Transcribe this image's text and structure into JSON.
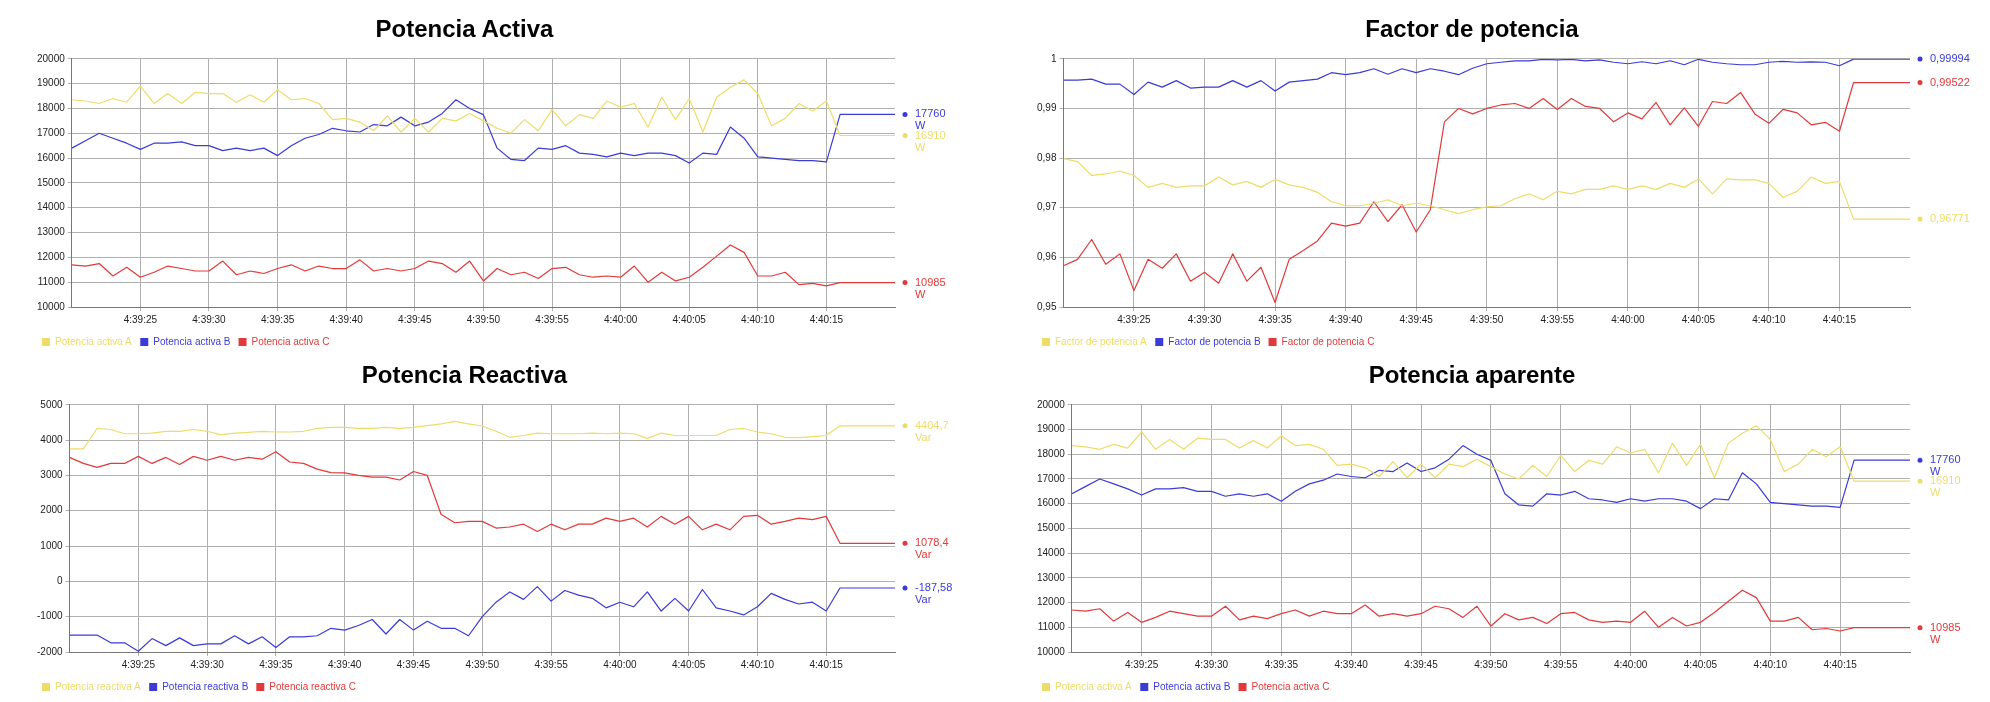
{
  "chart_data": [
    {
      "type": "line",
      "title": "Potencia Activa",
      "grid": true,
      "legend": "bottom",
      "x": [
        4.655556,
        4.655833,
        4.656111,
        4.656389,
        4.656667,
        4.656944,
        4.657222,
        4.6575,
        4.657778,
        4.658056,
        4.658333,
        4.658611,
        4.658889,
        4.659167,
        4.659444,
        4.659722,
        4.66,
        4.660278,
        4.660556,
        4.660833,
        4.661111,
        4.661389,
        4.661667,
        4.661944,
        4.662222,
        4.6625,
        4.662778,
        4.663056,
        4.663333,
        4.663611,
        4.663889,
        4.664167,
        4.664444,
        4.664722,
        4.665,
        4.665278,
        4.665556,
        4.665833,
        4.666111,
        4.666389,
        4.666667,
        4.666944,
        4.667222,
        4.6675,
        4.667778,
        4.668056,
        4.668333,
        4.668611,
        4.668889,
        4.669167,
        4.669444,
        4.669722,
        4.67,
        4.670278,
        4.670556,
        4.670833,
        4.671111,
        4.672222
      ],
      "xlim": [
        4.655556,
        4.672222
      ],
      "xticks": [
        {
          "value": 4.656944,
          "label": "4:39:25"
        },
        {
          "value": 4.658333,
          "label": "4:39:30"
        },
        {
          "value": 4.659722,
          "label": "4:39:35"
        },
        {
          "value": 4.661111,
          "label": "4:39:40"
        },
        {
          "value": 4.6625,
          "label": "4:39:45"
        },
        {
          "value": 4.663889,
          "label": "4:39:50"
        },
        {
          "value": 4.665278,
          "label": "4:39:55"
        },
        {
          "value": 4.666667,
          "label": "4:40:00"
        },
        {
          "value": 4.668056,
          "label": "4:40:05"
        },
        {
          "value": 4.669444,
          "label": "4:40:10"
        },
        {
          "value": 4.670833,
          "label": "4:40:15"
        }
      ],
      "ylim": [
        10000,
        20000
      ],
      "yticks": [
        10000,
        11000,
        12000,
        13000,
        14000,
        15000,
        16000,
        17000,
        18000,
        19000,
        20000
      ],
      "series": [
        {
          "name": "Potencia activa A",
          "color": "#eedc6a",
          "values": [
            18350,
            18300,
            18200,
            18400,
            18250,
            18900,
            18200,
            18600,
            18200,
            18650,
            18600,
            18600,
            18250,
            18550,
            18250,
            18750,
            18350,
            18400,
            18200,
            17550,
            17600,
            17450,
            17100,
            17700,
            17050,
            17600,
            17050,
            17600,
            17500,
            17800,
            17500,
            17200,
            17000,
            17550,
            17100,
            17950,
            17300,
            17750,
            17600,
            18300,
            18050,
            18200,
            17250,
            18450,
            17550,
            18400,
            17050,
            18450,
            18850,
            19150,
            18600,
            17300,
            17600,
            18200,
            17900,
            18300,
            16910,
            16910
          ],
          "value_labels": [
            null,
            null,
            null,
            null,
            null,
            null,
            null,
            null,
            null,
            null,
            null,
            null,
            null,
            null,
            null,
            null,
            null,
            null,
            null,
            null,
            null,
            null,
            null,
            null,
            null,
            null,
            null,
            null,
            null,
            null,
            null,
            null,
            null,
            null,
            null,
            null,
            null,
            null,
            null,
            null,
            null,
            null,
            null,
            null,
            null,
            null,
            null,
            null,
            null,
            null,
            null,
            null,
            null,
            null,
            null,
            null,
            null,
            "16910 W"
          ]
        },
        {
          "name": "Potencia activa B",
          "color": "#3b3bd6",
          "values": [
            16400,
            16700,
            17000,
            16800,
            16600,
            16350,
            16600,
            16600,
            16650,
            16500,
            16500,
            16300,
            16400,
            16300,
            16400,
            16100,
            16500,
            16800,
            16950,
            17200,
            17100,
            17050,
            17350,
            17300,
            17650,
            17300,
            17450,
            17800,
            18350,
            18000,
            17750,
            16400,
            15950,
            15900,
            16400,
            16350,
            16500,
            16200,
            16150,
            16050,
            16200,
            16100,
            16200,
            16200,
            16100,
            15800,
            16200,
            16150,
            17250,
            16800,
            16050,
            16000,
            15950,
            15900,
            15900,
            15850,
            17760,
            17760
          ],
          "value_labels": [
            null,
            null,
            null,
            null,
            null,
            null,
            null,
            null,
            null,
            null,
            null,
            null,
            null,
            null,
            null,
            null,
            null,
            null,
            null,
            null,
            null,
            null,
            null,
            null,
            null,
            null,
            null,
            null,
            null,
            null,
            null,
            null,
            null,
            null,
            null,
            null,
            null,
            null,
            null,
            null,
            null,
            null,
            null,
            null,
            null,
            null,
            null,
            null,
            null,
            null,
            null,
            null,
            null,
            null,
            null,
            null,
            null,
            "17760 W"
          ]
        },
        {
          "name": "Potencia activa C",
          "color": "#e03a3a",
          "values": [
            11700,
            11650,
            11750,
            11250,
            11600,
            11200,
            11400,
            11650,
            11550,
            11450,
            11450,
            11850,
            11300,
            11450,
            11350,
            11550,
            11700,
            11450,
            11650,
            11550,
            11550,
            11900,
            11450,
            11550,
            11450,
            11550,
            11850,
            11750,
            11400,
            11850,
            11050,
            11550,
            11300,
            11400,
            11150,
            11550,
            11600,
            11300,
            11200,
            11250,
            11200,
            11650,
            11000,
            11400,
            11050,
            11200,
            11600,
            12050,
            12500,
            12200,
            11250,
            11250,
            11400,
            10900,
            10950,
            10850,
            10985,
            10985
          ],
          "value_labels": [
            null,
            null,
            null,
            null,
            null,
            null,
            null,
            null,
            null,
            null,
            null,
            null,
            null,
            null,
            null,
            null,
            null,
            null,
            null,
            null,
            null,
            null,
            null,
            null,
            null,
            null,
            null,
            null,
            null,
            null,
            null,
            null,
            null,
            null,
            null,
            null,
            null,
            null,
            null,
            null,
            null,
            null,
            null,
            null,
            null,
            null,
            null,
            null,
            null,
            null,
            null,
            null,
            null,
            null,
            null,
            null,
            null,
            "10985 W"
          ]
        }
      ]
    },
    {
      "type": "line",
      "title": "Factor de potencia",
      "grid": true,
      "legend": "bottom",
      "x": [
        4.655556,
        4.655833,
        4.656111,
        4.656389,
        4.656667,
        4.656944,
        4.657222,
        4.6575,
        4.657778,
        4.658056,
        4.658333,
        4.658611,
        4.658889,
        4.659167,
        4.659444,
        4.659722,
        4.66,
        4.660278,
        4.660556,
        4.660833,
        4.661111,
        4.661389,
        4.661667,
        4.661944,
        4.662222,
        4.6625,
        4.662778,
        4.663056,
        4.663333,
        4.663611,
        4.663889,
        4.664167,
        4.664444,
        4.664722,
        4.665,
        4.665278,
        4.665556,
        4.665833,
        4.666111,
        4.666389,
        4.666667,
        4.666944,
        4.667222,
        4.6675,
        4.667778,
        4.668056,
        4.668333,
        4.668611,
        4.668889,
        4.669167,
        4.669444,
        4.669722,
        4.67,
        4.670278,
        4.670556,
        4.670833,
        4.671111,
        4.672222
      ],
      "xlim": [
        4.655556,
        4.672222
      ],
      "xticks": [
        {
          "value": 4.656944,
          "label": "4:39:25"
        },
        {
          "value": 4.658333,
          "label": "4:39:30"
        },
        {
          "value": 4.659722,
          "label": "4:39:35"
        },
        {
          "value": 4.661111,
          "label": "4:39:40"
        },
        {
          "value": 4.6625,
          "label": "4:39:45"
        },
        {
          "value": 4.663889,
          "label": "4:39:50"
        },
        {
          "value": 4.665278,
          "label": "4:39:55"
        },
        {
          "value": 4.666667,
          "label": "4:40:00"
        },
        {
          "value": 4.668056,
          "label": "4:40:05"
        },
        {
          "value": 4.669444,
          "label": "4:40:10"
        },
        {
          "value": 4.670833,
          "label": "4:40:15"
        }
      ],
      "ylim": [
        0.95,
        1
      ],
      "yticks": [
        {
          "value": 0.95,
          "label": "0,95"
        },
        {
          "value": 0.96,
          "label": "0,96"
        },
        {
          "value": 0.97,
          "label": "0,97"
        },
        {
          "value": 0.98,
          "label": "0,98"
        },
        {
          "value": 0.99,
          "label": "0,99"
        },
        1
      ],
      "series": [
        {
          "name": "Factor de potencia A",
          "color": "#eedc6a",
          "values": [
            0.9799,
            0.9793,
            0.9765,
            0.9768,
            0.9774,
            0.9765,
            0.9741,
            0.9749,
            0.9741,
            0.9744,
            0.9744,
            0.9762,
            0.9746,
            0.9753,
            0.9741,
            0.9757,
            0.9746,
            0.9741,
            0.9731,
            0.9712,
            0.9704,
            0.9704,
            0.9709,
            0.9716,
            0.9704,
            0.9709,
            0.9704,
            0.9696,
            0.9688,
            0.9696,
            0.9702,
            0.9704,
            0.9718,
            0.9728,
            0.9716,
            0.9733,
            0.9728,
            0.9737,
            0.9737,
            0.9744,
            0.9737,
            0.9744,
            0.9737,
            0.9749,
            0.9741,
            0.9758,
            0.9728,
            0.9758,
            0.9756,
            0.9756,
            0.9749,
            0.9721,
            0.9733,
            0.9762,
            0.9749,
            0.9753,
            0.96771,
            0.96771
          ],
          "value_labels": [
            null,
            null,
            null,
            null,
            null,
            null,
            null,
            null,
            null,
            null,
            null,
            null,
            null,
            null,
            null,
            null,
            null,
            null,
            null,
            null,
            null,
            null,
            null,
            null,
            null,
            null,
            null,
            null,
            null,
            null,
            null,
            null,
            null,
            null,
            null,
            null,
            null,
            null,
            null,
            null,
            null,
            null,
            null,
            null,
            null,
            null,
            null,
            null,
            null,
            null,
            null,
            null,
            null,
            null,
            null,
            null,
            null,
            "0,96771"
          ]
        },
        {
          "name": "Factor de potencia B",
          "color": "#3b3bd6",
          "values": [
            0.9957,
            0.9957,
            0.9959,
            0.9949,
            0.9949,
            0.9928,
            0.9953,
            0.9943,
            0.9956,
            0.9941,
            0.9943,
            0.9943,
            0.9956,
            0.9943,
            0.9956,
            0.9935,
            0.9953,
            0.9956,
            0.9959,
            0.9972,
            0.9968,
            0.9972,
            0.998,
            0.9969,
            0.998,
            0.9972,
            0.998,
            0.9975,
            0.9968,
            0.9981,
            0.999,
            0.9993,
            0.9996,
            0.9996,
            0.9999,
            0.9998,
            0.9999,
            0.9996,
            0.9998,
            0.9993,
            0.999,
            0.9994,
            0.999,
            0.9996,
            0.9988,
            0.9999,
            0.9993,
            0.999,
            0.9988,
            0.9988,
            0.9993,
            0.9995,
            0.9993,
            0.9994,
            0.9993,
            0.9986,
            0.99994,
            0.99994
          ],
          "value_labels": [
            null,
            null,
            null,
            null,
            null,
            null,
            null,
            null,
            null,
            null,
            null,
            null,
            null,
            null,
            null,
            null,
            null,
            null,
            null,
            null,
            null,
            null,
            null,
            null,
            null,
            null,
            null,
            null,
            null,
            null,
            null,
            null,
            null,
            null,
            null,
            null,
            null,
            null,
            null,
            null,
            null,
            null,
            null,
            null,
            null,
            null,
            null,
            null,
            null,
            null,
            null,
            null,
            null,
            null,
            null,
            null,
            null,
            "0,99994"
          ]
        },
        {
          "name": "Factor de potencia C",
          "color": "#e03a3a",
          "values": [
            0.9583,
            0.9596,
            0.9636,
            0.9586,
            0.9607,
            0.9533,
            0.9596,
            0.9578,
            0.9607,
            0.9552,
            0.957,
            0.9548,
            0.9607,
            0.9552,
            0.958,
            0.9509,
            0.9596,
            0.9614,
            0.9633,
            0.9669,
            0.9663,
            0.9669,
            0.9712,
            0.9672,
            0.9706,
            0.9651,
            0.9696,
            0.9873,
            0.99,
            0.9889,
            0.99,
            0.9907,
            0.991,
            0.99,
            0.992,
            0.9898,
            0.992,
            0.9904,
            0.99,
            0.9873,
            0.9891,
            0.9879,
            0.9912,
            0.9867,
            0.9901,
            0.9864,
            0.9914,
            0.991,
            0.9932,
            0.9889,
            0.987,
            0.9898,
            0.9891,
            0.9867,
            0.9872,
            0.9854,
            0.99522,
            0.99522
          ],
          "value_labels": [
            null,
            null,
            null,
            null,
            null,
            null,
            null,
            null,
            null,
            null,
            null,
            null,
            null,
            null,
            null,
            null,
            null,
            null,
            null,
            null,
            null,
            null,
            null,
            null,
            null,
            null,
            null,
            null,
            null,
            null,
            null,
            null,
            null,
            null,
            null,
            null,
            null,
            null,
            null,
            null,
            null,
            null,
            null,
            null,
            null,
            null,
            null,
            null,
            null,
            null,
            null,
            null,
            null,
            null,
            null,
            null,
            null,
            "0,99522"
          ]
        }
      ]
    },
    {
      "type": "line",
      "title": "Potencia Reactiva",
      "grid": true,
      "legend": "bottom",
      "x": [
        4.655556,
        4.655833,
        4.656111,
        4.656389,
        4.656667,
        4.656944,
        4.657222,
        4.6575,
        4.657778,
        4.658056,
        4.658333,
        4.658611,
        4.658889,
        4.659167,
        4.659444,
        4.659722,
        4.66,
        4.660278,
        4.660556,
        4.660833,
        4.661111,
        4.661389,
        4.661667,
        4.661944,
        4.662222,
        4.6625,
        4.662778,
        4.663056,
        4.663333,
        4.663611,
        4.663889,
        4.664167,
        4.664444,
        4.664722,
        4.665,
        4.665278,
        4.665556,
        4.665833,
        4.666111,
        4.666389,
        4.666667,
        4.666944,
        4.667222,
        4.6675,
        4.667778,
        4.668056,
        4.668333,
        4.668611,
        4.668889,
        4.669167,
        4.669444,
        4.669722,
        4.67,
        4.670278,
        4.670556,
        4.670833,
        4.671111,
        4.672222
      ],
      "xlim": [
        4.655556,
        4.672222
      ],
      "xticks": [
        {
          "value": 4.656944,
          "label": "4:39:25"
        },
        {
          "value": 4.658333,
          "label": "4:39:30"
        },
        {
          "value": 4.659722,
          "label": "4:39:35"
        },
        {
          "value": 4.661111,
          "label": "4:39:40"
        },
        {
          "value": 4.6625,
          "label": "4:39:45"
        },
        {
          "value": 4.663889,
          "label": "4:39:50"
        },
        {
          "value": 4.665278,
          "label": "4:39:55"
        },
        {
          "value": 4.666667,
          "label": "4:40:00"
        },
        {
          "value": 4.668056,
          "label": "4:40:05"
        },
        {
          "value": 4.669444,
          "label": "4:40:10"
        },
        {
          "value": 4.670833,
          "label": "4:40:15"
        }
      ],
      "ylim": [
        -2000,
        5000
      ],
      "yticks": [
        -2000,
        -1000,
        0,
        1000,
        2000,
        3000,
        4000,
        5000
      ],
      "series": [
        {
          "name": "Potencia reactiva A",
          "color": "#eedc6a",
          "values": [
            3750,
            3750,
            4330,
            4300,
            4180,
            4180,
            4200,
            4250,
            4250,
            4300,
            4250,
            4150,
            4200,
            4220,
            4250,
            4230,
            4230,
            4250,
            4330,
            4360,
            4360,
            4330,
            4330,
            4360,
            4330,
            4360,
            4410,
            4460,
            4530,
            4460,
            4400,
            4250,
            4080,
            4130,
            4200,
            4180,
            4180,
            4180,
            4200,
            4180,
            4200,
            4180,
            4050,
            4200,
            4130,
            4130,
            4130,
            4130,
            4300,
            4330,
            4230,
            4180,
            4080,
            4070,
            4100,
            4130,
            4404.7,
            4404.7
          ],
          "value_labels": [
            null,
            null,
            null,
            null,
            null,
            null,
            null,
            null,
            null,
            null,
            null,
            null,
            null,
            null,
            null,
            null,
            null,
            null,
            null,
            null,
            null,
            null,
            null,
            null,
            null,
            null,
            null,
            null,
            null,
            null,
            null,
            null,
            null,
            null,
            null,
            null,
            null,
            null,
            null,
            null,
            null,
            null,
            null,
            null,
            null,
            null,
            null,
            null,
            null,
            null,
            null,
            null,
            null,
            null,
            null,
            null,
            null,
            "4404,7 Var"
          ]
        },
        {
          "name": "Potencia reactiva B",
          "color": "#3b3bd6",
          "values": [
            -1520,
            -1520,
            -1520,
            -1740,
            -1740,
            -1980,
            -1620,
            -1820,
            -1600,
            -1820,
            -1770,
            -1770,
            -1540,
            -1770,
            -1570,
            -1870,
            -1570,
            -1570,
            -1540,
            -1330,
            -1380,
            -1250,
            -1080,
            -1490,
            -1080,
            -1380,
            -1130,
            -1330,
            -1330,
            -1540,
            -1000,
            -590,
            -300,
            -510,
            -150,
            -560,
            -260,
            -390,
            -480,
            -750,
            -590,
            -720,
            -300,
            -840,
            -480,
            -840,
            -230,
            -750,
            -840,
            -950,
            -720,
            -340,
            -510,
            -640,
            -590,
            -840,
            -187.58,
            -187.58
          ],
          "value_labels": [
            null,
            null,
            null,
            null,
            null,
            null,
            null,
            null,
            null,
            null,
            null,
            null,
            null,
            null,
            null,
            null,
            null,
            null,
            null,
            null,
            null,
            null,
            null,
            null,
            null,
            null,
            null,
            null,
            null,
            null,
            null,
            null,
            null,
            null,
            null,
            null,
            null,
            null,
            null,
            null,
            null,
            null,
            null,
            null,
            null,
            null,
            null,
            null,
            null,
            null,
            null,
            null,
            null,
            null,
            null,
            null,
            null,
            "-187,58 Var"
          ]
        },
        {
          "name": "Potencia reactiva C",
          "color": "#e03a3a",
          "values": [
            3510,
            3340,
            3230,
            3340,
            3340,
            3540,
            3340,
            3510,
            3310,
            3540,
            3430,
            3540,
            3430,
            3510,
            3460,
            3670,
            3380,
            3340,
            3180,
            3080,
            3070,
            3000,
            2950,
            2950,
            2870,
            3110,
            3000,
            1900,
            1660,
            1700,
            1700,
            1510,
            1540,
            1620,
            1410,
            1620,
            1460,
            1620,
            1620,
            1790,
            1700,
            1790,
            1540,
            1840,
            1620,
            1840,
            1460,
            1620,
            1460,
            1840,
            1870,
            1620,
            1700,
            1790,
            1750,
            1840,
            1078.4,
            1078.4
          ],
          "value_labels": [
            null,
            null,
            null,
            null,
            null,
            null,
            null,
            null,
            null,
            null,
            null,
            null,
            null,
            null,
            null,
            null,
            null,
            null,
            null,
            null,
            null,
            null,
            null,
            null,
            null,
            null,
            null,
            null,
            null,
            null,
            null,
            null,
            null,
            null,
            null,
            null,
            null,
            null,
            null,
            null,
            null,
            null,
            null,
            null,
            null,
            null,
            null,
            null,
            null,
            null,
            null,
            null,
            null,
            null,
            null,
            null,
            null,
            "1078,4 Var"
          ]
        }
      ]
    },
    {
      "type": "line",
      "title": "Potencia aparente",
      "grid": true,
      "legend": "bottom",
      "x": [
        4.655556,
        4.655833,
        4.656111,
        4.656389,
        4.656667,
        4.656944,
        4.657222,
        4.6575,
        4.657778,
        4.658056,
        4.658333,
        4.658611,
        4.658889,
        4.659167,
        4.659444,
        4.659722,
        4.66,
        4.660278,
        4.660556,
        4.660833,
        4.661111,
        4.661389,
        4.661667,
        4.661944,
        4.662222,
        4.6625,
        4.662778,
        4.663056,
        4.663333,
        4.663611,
        4.663889,
        4.664167,
        4.664444,
        4.664722,
        4.665,
        4.665278,
        4.665556,
        4.665833,
        4.666111,
        4.666389,
        4.666667,
        4.666944,
        4.667222,
        4.6675,
        4.667778,
        4.668056,
        4.668333,
        4.668611,
        4.668889,
        4.669167,
        4.669444,
        4.669722,
        4.67,
        4.670278,
        4.670556,
        4.670833,
        4.671111,
        4.672222
      ],
      "xlim": [
        4.655556,
        4.672222
      ],
      "xticks": [
        {
          "value": 4.656944,
          "label": "4:39:25"
        },
        {
          "value": 4.658333,
          "label": "4:39:30"
        },
        {
          "value": 4.659722,
          "label": "4:39:35"
        },
        {
          "value": 4.661111,
          "label": "4:39:40"
        },
        {
          "value": 4.6625,
          "label": "4:39:45"
        },
        {
          "value": 4.663889,
          "label": "4:39:50"
        },
        {
          "value": 4.665278,
          "label": "4:39:55"
        },
        {
          "value": 4.666667,
          "label": "4:40:00"
        },
        {
          "value": 4.668056,
          "label": "4:40:05"
        },
        {
          "value": 4.669444,
          "label": "4:40:10"
        },
        {
          "value": 4.670833,
          "label": "4:40:15"
        }
      ],
      "ylim": [
        10000,
        20000
      ],
      "yticks": [
        10000,
        11000,
        12000,
        13000,
        14000,
        15000,
        16000,
        17000,
        18000,
        19000,
        20000
      ],
      "series": [
        {
          "name": "Potencia activa A",
          "color": "#eedc6a",
          "values": [
            18350,
            18300,
            18200,
            18400,
            18250,
            18900,
            18200,
            18600,
            18200,
            18650,
            18600,
            18600,
            18250,
            18550,
            18250,
            18750,
            18350,
            18400,
            18200,
            17550,
            17600,
            17450,
            17100,
            17700,
            17050,
            17600,
            17050,
            17600,
            17500,
            17800,
            17500,
            17200,
            17000,
            17550,
            17100,
            17950,
            17300,
            17750,
            17600,
            18300,
            18050,
            18200,
            17250,
            18450,
            17550,
            18400,
            17050,
            18450,
            18850,
            19150,
            18600,
            17300,
            17600,
            18200,
            17900,
            18300,
            16910,
            16910
          ],
          "value_labels": [
            null,
            null,
            null,
            null,
            null,
            null,
            null,
            null,
            null,
            null,
            null,
            null,
            null,
            null,
            null,
            null,
            null,
            null,
            null,
            null,
            null,
            null,
            null,
            null,
            null,
            null,
            null,
            null,
            null,
            null,
            null,
            null,
            null,
            null,
            null,
            null,
            null,
            null,
            null,
            null,
            null,
            null,
            null,
            null,
            null,
            null,
            null,
            null,
            null,
            null,
            null,
            null,
            null,
            null,
            null,
            null,
            null,
            "16910 W"
          ]
        },
        {
          "name": "Potencia activa B",
          "color": "#3b3bd6",
          "values": [
            16400,
            16700,
            17000,
            16800,
            16600,
            16350,
            16600,
            16600,
            16650,
            16500,
            16500,
            16300,
            16400,
            16300,
            16400,
            16100,
            16500,
            16800,
            16950,
            17200,
            17100,
            17050,
            17350,
            17300,
            17650,
            17300,
            17450,
            17800,
            18350,
            18000,
            17750,
            16400,
            15950,
            15900,
            16400,
            16350,
            16500,
            16200,
            16150,
            16050,
            16200,
            16100,
            16200,
            16200,
            16100,
            15800,
            16200,
            16150,
            17250,
            16800,
            16050,
            16000,
            15950,
            15900,
            15900,
            15850,
            17760,
            17760
          ],
          "value_labels": [
            null,
            null,
            null,
            null,
            null,
            null,
            null,
            null,
            null,
            null,
            null,
            null,
            null,
            null,
            null,
            null,
            null,
            null,
            null,
            null,
            null,
            null,
            null,
            null,
            null,
            null,
            null,
            null,
            null,
            null,
            null,
            null,
            null,
            null,
            null,
            null,
            null,
            null,
            null,
            null,
            null,
            null,
            null,
            null,
            null,
            null,
            null,
            null,
            null,
            null,
            null,
            null,
            null,
            null,
            null,
            null,
            null,
            "17760 W"
          ]
        },
        {
          "name": "Potencia activa C",
          "color": "#e03a3a",
          "values": [
            11700,
            11650,
            11750,
            11250,
            11600,
            11200,
            11400,
            11650,
            11550,
            11450,
            11450,
            11850,
            11300,
            11450,
            11350,
            11550,
            11700,
            11450,
            11650,
            11550,
            11550,
            11900,
            11450,
            11550,
            11450,
            11550,
            11850,
            11750,
            11400,
            11850,
            11050,
            11550,
            11300,
            11400,
            11150,
            11550,
            11600,
            11300,
            11200,
            11250,
            11200,
            11650,
            11000,
            11400,
            11050,
            11200,
            11600,
            12050,
            12500,
            12200,
            11250,
            11250,
            11400,
            10900,
            10950,
            10850,
            10985,
            10985
          ],
          "value_labels": [
            null,
            null,
            null,
            null,
            null,
            null,
            null,
            null,
            null,
            null,
            null,
            null,
            null,
            null,
            null,
            null,
            null,
            null,
            null,
            null,
            null,
            null,
            null,
            null,
            null,
            null,
            null,
            null,
            null,
            null,
            null,
            null,
            null,
            null,
            null,
            null,
            null,
            null,
            null,
            null,
            null,
            null,
            null,
            null,
            null,
            null,
            null,
            null,
            null,
            null,
            null,
            null,
            null,
            null,
            null,
            null,
            null,
            "10985 W"
          ]
        }
      ]
    }
  ]
}
